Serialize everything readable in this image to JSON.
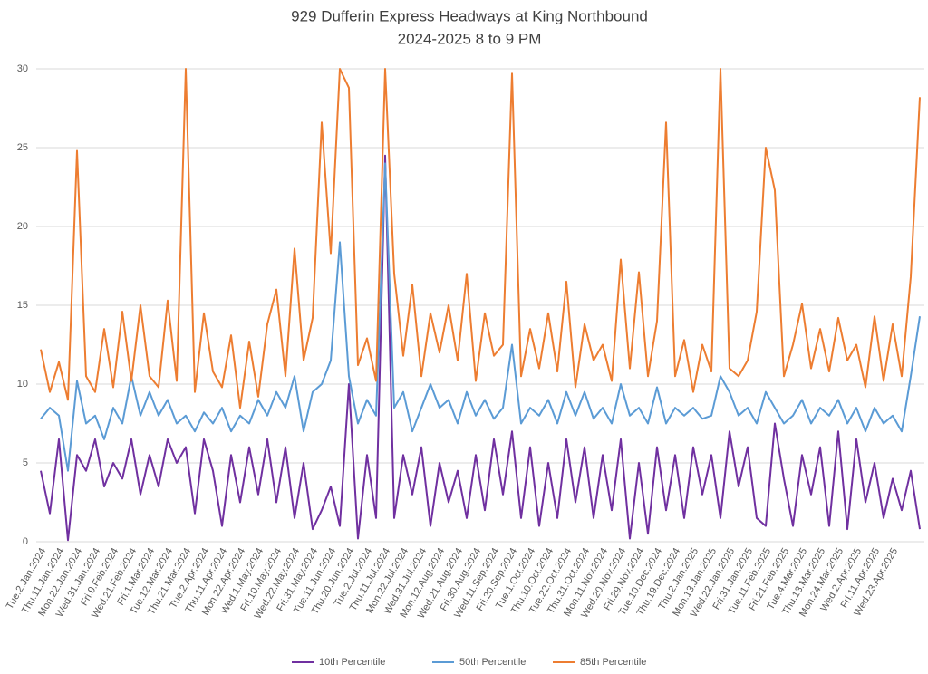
{
  "chart_data": {
    "type": "line",
    "title": "929 Dufferin Express Headways at King Northbound",
    "subtitle": "2024-2025 8 to 9 PM",
    "categories": [
      "Tue.2.Jan.2024",
      null,
      "Thu.11.Jan.2024",
      null,
      "Mon.22.Jan.2024",
      null,
      "Wed.31.Jan.2024",
      null,
      "Fri.9.Feb.2024",
      null,
      "Wed.21.Feb.2024",
      null,
      "Fri.1.Mar.2024",
      null,
      "Tue.12.Mar.2024",
      null,
      "Thu.21.Mar.2024",
      null,
      "Tue.2.Apr.2024",
      null,
      "Thu.11.Apr.2024",
      null,
      "Mon.22.Apr.2024",
      null,
      "Wed.1.May.2024",
      null,
      "Fri.10.May.2024",
      null,
      "Wed.22.May.2024",
      null,
      "Fri.31.May.2024",
      null,
      "Tue.11.Jun.2024",
      null,
      "Thu.20.Jun.2024",
      null,
      "Tue.2.Jul.2024",
      null,
      "Thu.11.Jul.2024",
      null,
      "Mon.22.Jul.2024",
      null,
      "Wed.31.Jul.2024",
      null,
      "Mon.12.Aug.2024",
      null,
      "Wed.21.Aug.2024",
      null,
      "Fri.30.Aug.2024",
      null,
      "Wed.11.Sep.2024",
      null,
      "Fri.20.Sep.2024",
      null,
      "Tue.1.Oct.2024",
      null,
      "Thu.10.Oct.2024",
      null,
      "Tue.22.Oct.2024",
      null,
      "Thu.31.Oct.2024",
      null,
      "Mon.11.Nov.2024",
      null,
      "Wed.20.Nov.2024",
      null,
      "Fri.29.Nov.2024",
      null,
      "Tue.10.Dec.2024",
      null,
      "Thu.19.Dec.2024",
      null,
      "Thu.2.Jan.2025",
      null,
      "Mon.13.Jan.2025",
      null,
      "Wed.22.Jan.2025",
      null,
      "Fri.31.Jan.2025",
      null,
      "Tue.11.Feb.2025",
      null,
      "Fri.21.Feb.2025",
      null,
      "Tue.4.Mar.2025",
      null,
      "Thu.13.Mar.2025",
      null,
      "Mon.24.Mar.2025",
      null,
      "Wed.2.Apr.2025",
      null,
      "Fri.11.Apr.2025",
      null,
      "Wed.23.Apr.2025",
      null,
      null,
      null
    ],
    "series": [
      {
        "name": "10th Percentile",
        "color": "#7030a0",
        "values": [
          4.5,
          1.8,
          6.5,
          0.1,
          5.5,
          4.5,
          6.5,
          3.5,
          5.0,
          4.0,
          6.5,
          3.0,
          5.5,
          3.5,
          6.5,
          5.0,
          6.0,
          1.8,
          6.5,
          4.5,
          1.0,
          5.5,
          2.5,
          6.0,
          3.0,
          6.5,
          2.5,
          6.0,
          1.5,
          5.0,
          0.8,
          2.0,
          3.5,
          1.0,
          10.0,
          0.2,
          5.5,
          1.5,
          24.5,
          1.5,
          5.5,
          3.0,
          6.0,
          1.0,
          5.0,
          2.5,
          4.5,
          1.5,
          5.5,
          2.0,
          6.5,
          3.0,
          7.0,
          1.5,
          6.0,
          1.0,
          5.0,
          1.5,
          6.5,
          2.5,
          6.0,
          1.5,
          5.5,
          2.0,
          6.5,
          0.2,
          5.0,
          0.5,
          6.0,
          2.0,
          5.5,
          1.5,
          6.0,
          3.0,
          5.5,
          1.5,
          7.0,
          3.5,
          6.0,
          1.5,
          1.0,
          7.5,
          4.0,
          1.0,
          5.5,
          3.0,
          6.0,
          1.0,
          7.0,
          0.8,
          6.5,
          2.5,
          5.0,
          1.5,
          4.0,
          2.0,
          4.5,
          0.8
        ]
      },
      {
        "name": "50th Percentile",
        "color": "#5b9bd5",
        "values": [
          7.8,
          8.5,
          8.0,
          4.5,
          10.2,
          7.5,
          8.0,
          6.5,
          8.5,
          7.5,
          10.5,
          8.0,
          9.5,
          8.0,
          9.0,
          7.5,
          8.0,
          7.0,
          8.2,
          7.5,
          8.5,
          7.0,
          8.0,
          7.5,
          9.0,
          8.0,
          9.5,
          8.5,
          10.5,
          7.0,
          9.5,
          10.0,
          11.5,
          19.0,
          10.5,
          7.5,
          9.0,
          8.0,
          24.0,
          8.5,
          9.5,
          7.0,
          8.5,
          10.0,
          8.5,
          9.0,
          7.5,
          9.5,
          8.0,
          9.0,
          7.8,
          8.5,
          12.5,
          7.5,
          8.5,
          8.0,
          9.0,
          7.5,
          9.5,
          8.0,
          9.5,
          7.8,
          8.5,
          7.5,
          10.0,
          8.0,
          8.5,
          7.5,
          9.8,
          7.5,
          8.5,
          8.0,
          8.5,
          7.8,
          8.0,
          10.5,
          9.5,
          8.0,
          8.5,
          7.5,
          9.5,
          8.5,
          7.5,
          8.0,
          9.0,
          7.5,
          8.5,
          8.0,
          9.0,
          7.5,
          8.5,
          7.0,
          8.5,
          7.5,
          8.0,
          7.0,
          10.5,
          14.3
        ]
      },
      {
        "name": "85th Percentile",
        "color": "#ed7d31",
        "values": [
          12.2,
          9.5,
          11.4,
          9.0,
          24.8,
          10.5,
          9.5,
          13.5,
          9.8,
          14.6,
          10.2,
          15.0,
          10.5,
          9.8,
          15.3,
          10.2,
          30,
          9.5,
          14.5,
          10.8,
          9.8,
          13.1,
          8.5,
          12.7,
          9.2,
          13.8,
          16.0,
          10.5,
          18.6,
          11.5,
          14.2,
          26.6,
          18.3,
          30,
          28.8,
          11.2,
          12.9,
          10.2,
          30,
          17.0,
          11.8,
          16.3,
          10.5,
          14.5,
          12.0,
          15.0,
          11.5,
          17.0,
          10.2,
          14.5,
          11.8,
          12.5,
          29.7,
          10.5,
          13.5,
          11.0,
          14.5,
          10.8,
          16.5,
          9.8,
          13.8,
          11.5,
          12.5,
          10.2,
          17.9,
          11.0,
          17.1,
          10.5,
          14.0,
          26.6,
          10.5,
          12.8,
          9.5,
          12.5,
          10.8,
          30,
          11.0,
          10.5,
          11.5,
          14.6,
          25.0,
          22.3,
          10.5,
          12.5,
          15.1,
          11.0,
          13.5,
          10.8,
          14.2,
          11.5,
          12.5,
          9.8,
          14.3,
          10.2,
          13.8,
          10.5,
          16.8,
          28.2
        ]
      }
    ],
    "ylim": [
      0,
      30
    ],
    "yticks": [
      0,
      5,
      10,
      15,
      20,
      25,
      30
    ],
    "grid": true,
    "legend": "bottom"
  }
}
